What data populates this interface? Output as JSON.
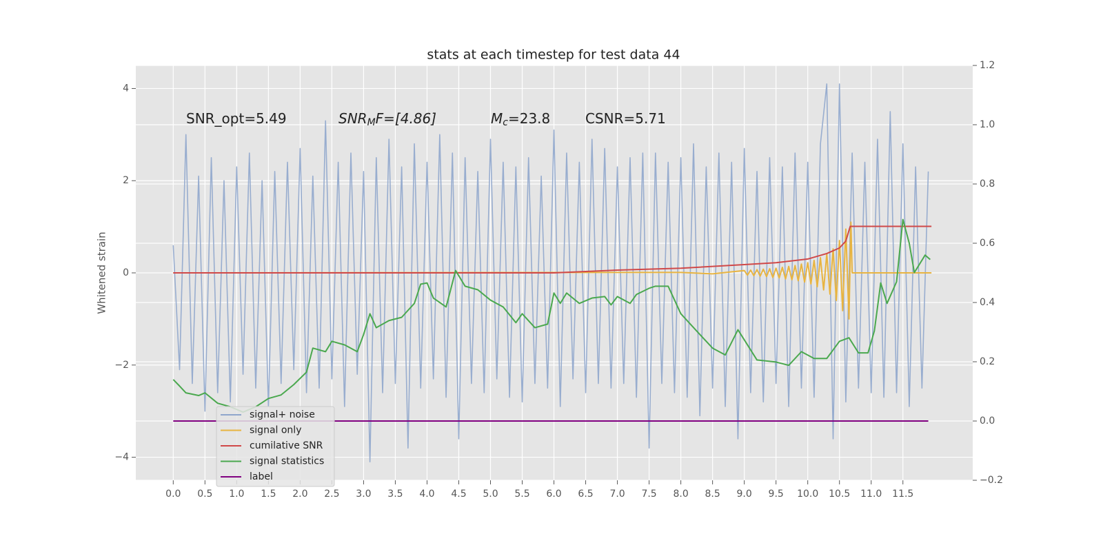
{
  "chart_data": {
    "type": "line",
    "title": "stats at each timestep for test data 44",
    "y_label": "Whitened strain",
    "annotations": [
      {
        "base": "SNR_opt=5.49"
      },
      {
        "base": "SNR",
        "sub": "M",
        "rest": "F=[4.86]"
      },
      {
        "base": "M",
        "sub": "c",
        "rest": "=23.8"
      },
      {
        "base": "CSNR=5.71"
      }
    ],
    "xlim": [
      -0.59,
      12.6
    ],
    "ylim": [
      -4.5,
      4.5
    ],
    "y2lim": [
      -0.2,
      1.2
    ],
    "xticks": [
      {
        "value": 0,
        "label": "0.0"
      },
      0.5,
      {
        "value": 1,
        "label": "1.0"
      },
      1.5,
      {
        "value": 2,
        "label": "2.0"
      },
      2.5,
      {
        "value": 3,
        "label": "3.0"
      },
      3.5,
      {
        "value": 4,
        "label": "4.0"
      },
      4.5,
      {
        "value": 5,
        "label": "5.0"
      },
      5.5,
      {
        "value": 6,
        "label": "6.0"
      },
      6.5,
      {
        "value": 7,
        "label": "7.0"
      },
      7.5,
      {
        "value": 8,
        "label": "8.0"
      },
      8.5,
      {
        "value": 9,
        "label": "9.0"
      },
      9.5,
      {
        "value": 10,
        "label": "10.0"
      },
      10.5,
      {
        "value": 11,
        "label": "11.0"
      },
      11.5
    ],
    "yticks": [
      {
        "value": -4,
        "label": "−4"
      },
      {
        "value": -2,
        "label": "−2"
      },
      0,
      2,
      4
    ],
    "y2ticks": [
      {
        "value": -0.2,
        "label": "−0.2"
      },
      {
        "value": 0,
        "label": "0.0"
      },
      0.2,
      0.4,
      0.6,
      0.8,
      {
        "value": 1,
        "label": "1.0"
      },
      1.2
    ],
    "grid": true,
    "legend": "lower left",
    "series": [
      {
        "name": "signal+ noise",
        "color": "#8fa6cc",
        "x": [
          0,
          0.1,
          0.2,
          0.3,
          0.4,
          0.5,
          0.6,
          0.7,
          0.8,
          0.9,
          1,
          1.1,
          1.2,
          1.3,
          1.4,
          1.5,
          1.6,
          1.7,
          1.8,
          1.9,
          2,
          2.1,
          2.2,
          2.3,
          2.4,
          2.5,
          2.6,
          2.7,
          2.8,
          2.9,
          3,
          3.1,
          3.2,
          3.3,
          3.4,
          3.5,
          3.6,
          3.7,
          3.8,
          3.9,
          4,
          4.1,
          4.2,
          4.3,
          4.4,
          4.5,
          4.6,
          4.7,
          4.8,
          4.9,
          5,
          5.1,
          5.2,
          5.3,
          5.4,
          5.5,
          5.6,
          5.7,
          5.8,
          5.9,
          6,
          6.1,
          6.2,
          6.3,
          6.4,
          6.5,
          6.6,
          6.7,
          6.8,
          6.9,
          7,
          7.1,
          7.2,
          7.3,
          7.4,
          7.5,
          7.6,
          7.7,
          7.8,
          7.9,
          8,
          8.1,
          8.2,
          8.3,
          8.4,
          8.5,
          8.6,
          8.7,
          8.8,
          8.9,
          9,
          9.1,
          9.2,
          9.3,
          9.4,
          9.5,
          9.6,
          9.7,
          9.8,
          9.9,
          10,
          10.1,
          10.2,
          10.3,
          10.4,
          10.5,
          10.6,
          10.7,
          10.8,
          10.9,
          11,
          11.1,
          11.2,
          11.3,
          11.4,
          11.5,
          11.6,
          11.7,
          11.8,
          11.9
        ],
        "values": [
          0.6,
          -2.1,
          3.0,
          -2.4,
          2.1,
          -3.0,
          2.5,
          -2.6,
          2.0,
          -2.8,
          2.3,
          -2.2,
          2.6,
          -2.5,
          2.0,
          -2.9,
          2.2,
          -2.4,
          2.4,
          -2.1,
          2.7,
          -2.6,
          2.1,
          -2.5,
          3.3,
          -2.3,
          2.4,
          -2.9,
          2.6,
          -2.2,
          2.2,
          -4.1,
          2.5,
          -2.6,
          2.9,
          -2.4,
          2.3,
          -3.8,
          2.8,
          -2.5,
          2.4,
          -2.3,
          3.0,
          -2.7,
          2.6,
          -3.6,
          2.5,
          -2.4,
          2.2,
          -2.6,
          2.9,
          -2.3,
          2.4,
          -2.7,
          2.3,
          -2.8,
          2.5,
          -2.4,
          2.1,
          -2.5,
          3.1,
          -2.9,
          2.6,
          -2.3,
          2.4,
          -2.6,
          2.9,
          -2.4,
          2.7,
          -2.5,
          2.3,
          -2.4,
          2.5,
          -2.7,
          2.6,
          -3.8,
          2.6,
          -2.4,
          2.4,
          -2.6,
          2.5,
          -2.7,
          2.8,
          -3.1,
          2.3,
          -2.5,
          2.6,
          -2.9,
          2.4,
          -3.6,
          2.7,
          -2.6,
          2.2,
          -2.8,
          2.5,
          -2.4,
          2.3,
          -2.9,
          2.6,
          -2.5,
          2.4,
          -2.7,
          2.8,
          4.1,
          -3.6,
          4.1,
          -2.8,
          2.6,
          -2.5,
          2.4,
          -2.6,
          2.9,
          -2.7,
          3.5,
          -2.6,
          2.8,
          -2.9,
          2.3,
          -2.5,
          2.2
        ]
      },
      {
        "name": "signal only",
        "color": "#e8b440",
        "x": [
          0,
          8,
          8.5,
          9,
          9.05,
          9.1,
          9.15,
          9.2,
          9.25,
          9.3,
          9.35,
          9.4,
          9.45,
          9.5,
          9.55,
          9.6,
          9.65,
          9.7,
          9.75,
          9.8,
          9.85,
          9.9,
          9.95,
          10,
          10.05,
          10.1,
          10.15,
          10.2,
          10.25,
          10.3,
          10.35,
          10.4,
          10.45,
          10.5,
          10.55,
          10.6,
          10.65,
          10.68,
          10.7,
          11.95
        ],
        "values": [
          0,
          0.01,
          -0.02,
          0.05,
          -0.05,
          0.06,
          -0.06,
          0.07,
          -0.07,
          0.08,
          -0.08,
          0.09,
          -0.1,
          0.1,
          -0.11,
          0.12,
          -0.13,
          0.14,
          -0.15,
          0.16,
          -0.17,
          0.19,
          -0.2,
          0.22,
          -0.24,
          0.27,
          -0.3,
          0.33,
          -0.37,
          0.41,
          -0.46,
          0.52,
          -0.6,
          0.7,
          -0.82,
          0.95,
          -1.0,
          1.1,
          0,
          0
        ]
      },
      {
        "name": "cumilative SNR",
        "color": "#d04848",
        "x": [
          0,
          6,
          7,
          8,
          9,
          9.5,
          10,
          10.3,
          10.5,
          10.6,
          10.67,
          11.95
        ],
        "values": [
          0,
          0,
          0.06,
          0.1,
          0.18,
          0.22,
          0.3,
          0.42,
          0.54,
          0.69,
          1.01,
          1.01
        ]
      },
      {
        "name": "signal statistics",
        "color": "#4aa84e",
        "axis": "y2",
        "x": [
          0,
          0.1,
          0.2,
          0.4,
          0.5,
          0.7,
          0.9,
          1.1,
          1.3,
          1.5,
          1.7,
          1.9,
          2.1,
          2.2,
          2.4,
          2.5,
          2.7,
          2.9,
          3.0,
          3.1,
          3.2,
          3.4,
          3.6,
          3.8,
          3.9,
          4.0,
          4.1,
          4.3,
          4.35,
          4.45,
          4.6,
          4.8,
          5.0,
          5.2,
          5.4,
          5.5,
          5.7,
          5.9,
          6.0,
          6.1,
          6.2,
          6.4,
          6.6,
          6.8,
          6.9,
          7.0,
          7.2,
          7.3,
          7.5,
          7.6,
          7.8,
          8.0,
          8.3,
          8.5,
          8.7,
          8.9,
          9.2,
          9.5,
          9.7,
          9.9,
          10.1,
          10.3,
          10.5,
          10.65,
          10.8,
          10.95,
          11.05,
          11.15,
          11.25,
          11.4,
          11.5,
          11.6,
          11.68,
          11.85,
          11.93
        ],
        "values": [
          0.14,
          0.118,
          0.095,
          0.086,
          0.095,
          0.06,
          0.048,
          0.03,
          0.048,
          0.076,
          0.088,
          0.123,
          0.165,
          0.246,
          0.234,
          0.269,
          0.257,
          0.234,
          0.292,
          0.362,
          0.315,
          0.339,
          0.35,
          0.397,
          0.462,
          0.466,
          0.415,
          0.385,
          0.425,
          0.508,
          0.455,
          0.443,
          0.408,
          0.385,
          0.332,
          0.362,
          0.315,
          0.327,
          0.432,
          0.397,
          0.432,
          0.397,
          0.415,
          0.42,
          0.392,
          0.42,
          0.397,
          0.427,
          0.448,
          0.455,
          0.455,
          0.362,
          0.292,
          0.246,
          0.223,
          0.308,
          0.206,
          0.199,
          0.188,
          0.234,
          0.211,
          0.211,
          0.269,
          0.281,
          0.23,
          0.23,
          0.304,
          0.466,
          0.397,
          0.47,
          0.68,
          0.6,
          0.501,
          0.56,
          0.545
        ]
      },
      {
        "name": "label",
        "color": "#800080",
        "axis": "y2",
        "x": [
          0,
          11.9
        ],
        "values": [
          0,
          0
        ]
      }
    ]
  }
}
